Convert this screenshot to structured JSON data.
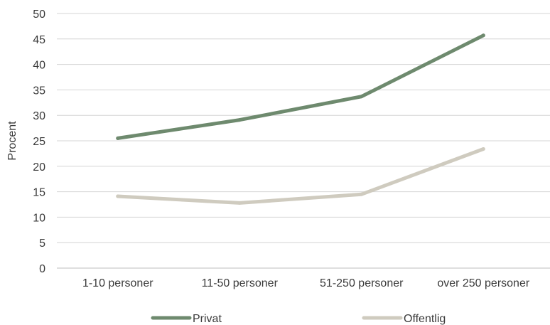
{
  "chart_data": {
    "type": "line",
    "title": "",
    "xlabel": "",
    "ylabel": "Procent",
    "categories": [
      "1-10 personer",
      "11-50 personer",
      "51-250 personer",
      "over 250 personer"
    ],
    "ylim": [
      0,
      50
    ],
    "yticks": [
      0,
      5,
      10,
      15,
      20,
      25,
      30,
      35,
      40,
      45,
      50
    ],
    "grid": true,
    "legend_position": "bottom",
    "series": [
      {
        "name": "Privat",
        "values": [
          25.5,
          29.1,
          33.7,
          45.7
        ],
        "color": "#6e8a6e"
      },
      {
        "name": "Offentlig",
        "values": [
          14.1,
          12.8,
          14.5,
          23.4
        ],
        "color": "#cfcbbf"
      }
    ]
  }
}
